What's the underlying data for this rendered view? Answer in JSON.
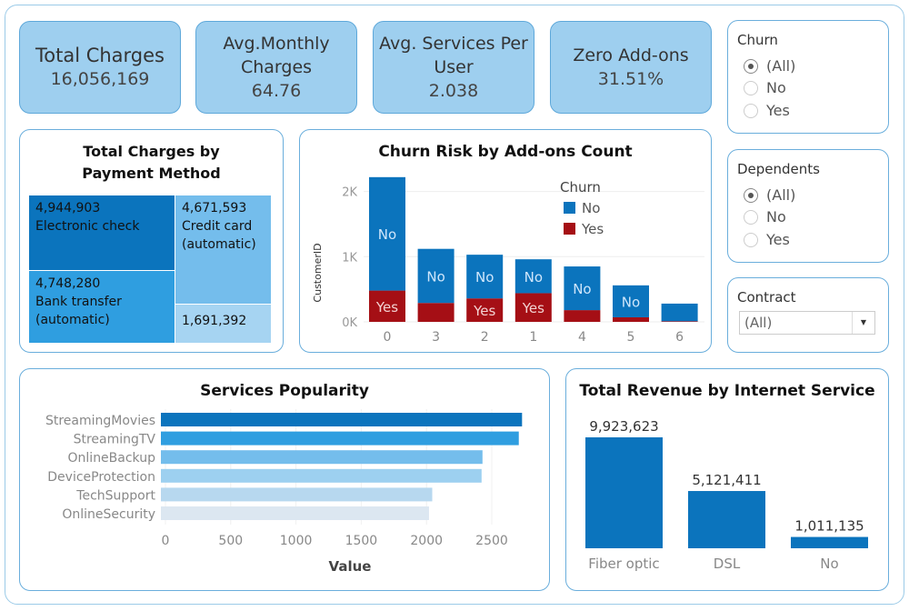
{
  "kpis": [
    {
      "title": "Total Charges",
      "value": "16,056,169"
    },
    {
      "title": "Avg.Monthly Charges",
      "value": "64.76"
    },
    {
      "title": "Avg. Services Per User",
      "value": "2.038"
    },
    {
      "title": "Zero Add-ons",
      "value": "31.51%"
    }
  ],
  "filters": {
    "churn": {
      "title": "Churn",
      "options": [
        "(All)",
        "No",
        "Yes"
      ],
      "selected": "(All)"
    },
    "dependents": {
      "title": "Dependents",
      "options": [
        "(All)",
        "No",
        "Yes"
      ],
      "selected": "(All)"
    },
    "contract": {
      "title": "Contract",
      "value": "(All)"
    }
  },
  "colors": {
    "dark_blue": "#0b74bd",
    "blue": "#2f9ee0",
    "light_blue": "#74bdec",
    "red": "#a50f15",
    "kpi_bg": "#9ecfef"
  },
  "chart_data": [
    {
      "type": "treemap",
      "title": "Total Charges by Payment Method",
      "items": [
        {
          "value": "4,944,903",
          "label": "Electronic check"
        },
        {
          "value": "4,748,280",
          "label": "Bank transfer (automatic)"
        },
        {
          "value": "4,671,593",
          "label": "Credit card (automatic)"
        },
        {
          "value": "1,691,392",
          "label": ""
        }
      ]
    },
    {
      "type": "bar",
      "stacked": true,
      "title": "Churn Risk by Add-ons Count",
      "ylabel": "CustomerID",
      "ylim": [
        0,
        2200
      ],
      "yticks": [
        "0K",
        "1K",
        "2K"
      ],
      "categories": [
        "0",
        "3",
        "2",
        "1",
        "4",
        "5",
        "6"
      ],
      "legend": {
        "title": "Churn",
        "position": "top-right"
      },
      "series": [
        {
          "name": "No",
          "values": [
            1740,
            830,
            670,
            520,
            670,
            490,
            270
          ]
        },
        {
          "name": "Yes",
          "values": [
            480,
            290,
            360,
            440,
            180,
            70,
            10
          ]
        }
      ],
      "segment_labels": {
        "No": [
          true,
          true,
          true,
          true,
          true,
          true,
          false
        ],
        "Yes": [
          true,
          false,
          true,
          true,
          false,
          false,
          false
        ]
      }
    },
    {
      "type": "bar",
      "orientation": "horizontal",
      "title": "Services Popularity",
      "xlabel": "Value",
      "xlim": [
        0,
        2800
      ],
      "xticks": [
        "0",
        "500",
        "1000",
        "1500",
        "2000",
        "2500"
      ],
      "categories": [
        "StreamingMovies",
        "StreamingTV",
        "OnlineBackup",
        "DeviceProtection",
        "TechSupport",
        "OnlineSecurity"
      ],
      "values": [
        2732,
        2707,
        2429,
        2422,
        2044,
        2019
      ],
      "bar_colors": [
        "#0b74bd",
        "#2f9ee0",
        "#74bdec",
        "#9dd0f0",
        "#b7d8ef",
        "#dce7f1"
      ]
    },
    {
      "type": "bar",
      "title": "Total Revenue by Internet Service",
      "categories": [
        "Fiber optic",
        "DSL",
        "No"
      ],
      "values": [
        9923623,
        5121411,
        1011135
      ],
      "data_labels": [
        "9,923,623",
        "5,121,411",
        "1,011,135"
      ]
    }
  ]
}
